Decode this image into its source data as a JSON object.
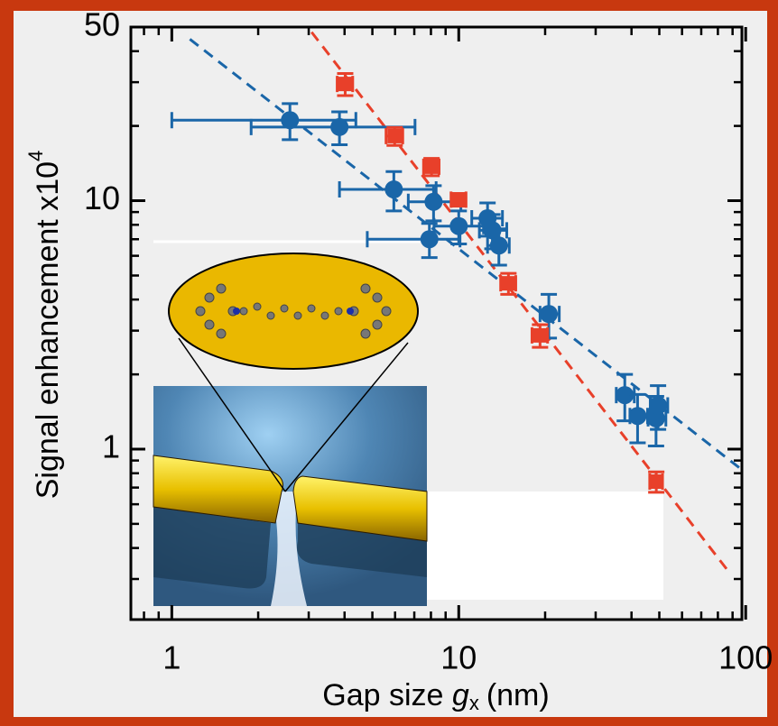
{
  "chart_data": {
    "type": "scatter",
    "ylabel": "Signal enhancement  x10",
    "ylabel_exponent": "4",
    "xlabel": {
      "text": "Gap size ",
      "symbol": "g",
      "subscript": "x",
      "unit": "(nm)"
    },
    "log_x": true,
    "log_y": true,
    "xlim": [
      0.72,
      97
    ],
    "ylim": [
      0.206,
      50
    ],
    "xticks": [
      1,
      10,
      100
    ],
    "yticks": [
      1,
      10,
      50
    ],
    "xminor_ticks": [
      0.8,
      0.9,
      2,
      3,
      4,
      5,
      6,
      7,
      8,
      9,
      20,
      30,
      40,
      50,
      60,
      70,
      80,
      90
    ],
    "yminor_ticks": [
      0.3,
      0.4,
      0.5,
      0.6,
      0.7,
      0.8,
      0.9,
      2,
      3,
      4,
      5,
      6,
      7,
      8,
      9,
      20,
      30,
      40
    ],
    "series": [
      {
        "color": "#1a66a8",
        "marker": "circle",
        "x": [
          2.58,
          3.84,
          5.94,
          8.17,
          7.9,
          10,
          12.6,
          13.1,
          13.8,
          20.6,
          37.9,
          42,
          48.7,
          49.5
        ],
        "y": [
          21.1,
          19.8,
          11.1,
          9.9,
          7.0,
          7.9,
          8.5,
          7.6,
          6.6,
          3.5,
          1.65,
          1.36,
          1.33,
          1.5
        ],
        "xerr_minus": [
          1.58,
          1.95,
          2.1,
          1.5,
          3.1,
          1.8,
          1.5,
          1.3,
          1.2,
          1.4,
          2.5,
          2.5,
          3,
          3
        ],
        "xerr_plus": [
          1.8,
          3.2,
          2.4,
          2,
          2.2,
          2.2,
          1.6,
          1.6,
          1.2,
          1.8,
          3,
          3.5,
          4,
          4
        ],
        "yerr": [
          3.5,
          3,
          2,
          1.6,
          1.1,
          1.2,
          1.3,
          1.2,
          1.1,
          0.7,
          0.35,
          0.3,
          0.3,
          0.3
        ]
      },
      {
        "color": "#e8402a",
        "marker": "square",
        "x": [
          4.02,
          5.98,
          8.04,
          10,
          14.9,
          19.2,
          48.8
        ],
        "y": [
          29.5,
          18.2,
          13.7,
          10.1,
          4.65,
          2.87,
          0.74
        ],
        "xerr_minus": [
          0.25,
          0.4,
          0.5,
          0.6,
          0.9,
          1.2,
          2.5
        ],
        "xerr_plus": [
          0.25,
          0.4,
          0.5,
          0.6,
          0.9,
          1.2,
          2.5
        ],
        "yerr": [
          3,
          1.5,
          1.1,
          0.6,
          0.45,
          0.3,
          0.07
        ]
      }
    ],
    "fits": [
      {
        "color": "#1a66a8",
        "x": [
          1.156,
          97
        ],
        "y": [
          44.7,
          0.826
        ]
      },
      {
        "color": "#e8402a",
        "x": [
          3.07,
          87.8
        ],
        "y": [
          47.7,
          0.318
        ]
      }
    ]
  }
}
